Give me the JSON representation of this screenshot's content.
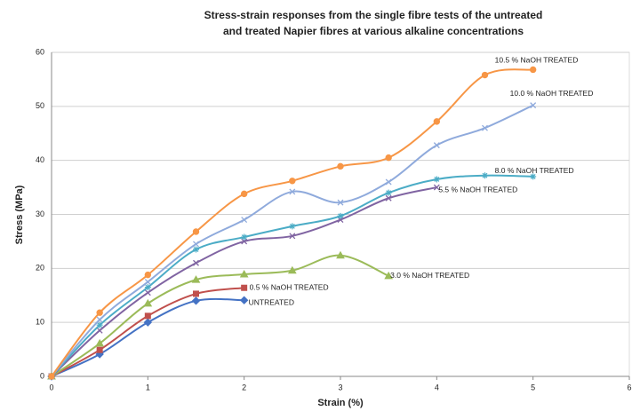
{
  "chart_data": {
    "type": "line",
    "title": [
      "Stress-strain responses from the single fibre tests of the untreated",
      "and treated Napier fibres at various alkaline concentrations"
    ],
    "x_label": "Strain (%)",
    "y_label": "Stress (MPa)",
    "xlim": [
      0,
      6
    ],
    "xticks": [
      0,
      1,
      2,
      3,
      4,
      5,
      6
    ],
    "ylim": [
      0,
      60
    ],
    "yticks": [
      0,
      10,
      20,
      30,
      40,
      50,
      60
    ],
    "grid": true,
    "series": [
      {
        "name": "UNTREATED",
        "color": "#4472c4",
        "marker": "diamond",
        "x": [
          0,
          0.5,
          1,
          1.5,
          2
        ],
        "values": [
          0,
          4.1,
          10,
          14,
          14.1
        ]
      },
      {
        "name": "0.5 % NaOH TREATED",
        "color": "#c0504d",
        "marker": "square",
        "x": [
          0,
          0.5,
          1,
          1.5,
          2
        ],
        "values": [
          0,
          4.9,
          11.2,
          15.3,
          16.4
        ]
      },
      {
        "name": "3.0 % NaOH TREATED",
        "color": "#9bbb59",
        "marker": "triangle",
        "x": [
          0,
          0.5,
          1,
          1.5,
          2,
          2.5,
          3,
          3.5
        ],
        "values": [
          0,
          6.1,
          13.5,
          17.9,
          18.9,
          19.6,
          22.4,
          18.6
        ]
      },
      {
        "name": "5.5 % NaOH TREATED",
        "color": "#8064a2",
        "marker": "x",
        "x": [
          0,
          0.5,
          1,
          1.5,
          2,
          2.5,
          3,
          3.5,
          4
        ],
        "values": [
          0,
          8.5,
          15.5,
          21,
          25,
          26,
          29,
          33,
          35
        ]
      },
      {
        "name": "8.0 % NaOH TREATED",
        "color": "#4bacc6",
        "marker": "star",
        "x": [
          0,
          0.5,
          1,
          1.5,
          2,
          2.5,
          3,
          3.5,
          4,
          4.5,
          5
        ],
        "values": [
          0,
          9.5,
          16.5,
          23.5,
          25.8,
          27.8,
          29.7,
          34,
          36.5,
          37.2,
          37
        ]
      },
      {
        "name": "10.0 % NaOH TREATED",
        "color": "#8faadc",
        "marker": "x",
        "x": [
          0,
          0.5,
          1,
          1.5,
          2,
          2.5,
          3,
          3.5,
          4,
          4.5,
          5
        ],
        "values": [
          0,
          10.5,
          17.5,
          24.5,
          29,
          34.2,
          32.2,
          36,
          42.8,
          46,
          50.2
        ]
      },
      {
        "name": "10.5 % NaOH TREATED",
        "color": "#f79646",
        "marker": "circle",
        "x": [
          0,
          0.5,
          1,
          1.5,
          2,
          2.5,
          3,
          3.5,
          4,
          4.5,
          5
        ],
        "values": [
          0,
          11.8,
          18.8,
          26.8,
          33.8,
          36.2,
          38.9,
          40.5,
          47.2,
          55.8,
          56.8
        ]
      }
    ]
  }
}
